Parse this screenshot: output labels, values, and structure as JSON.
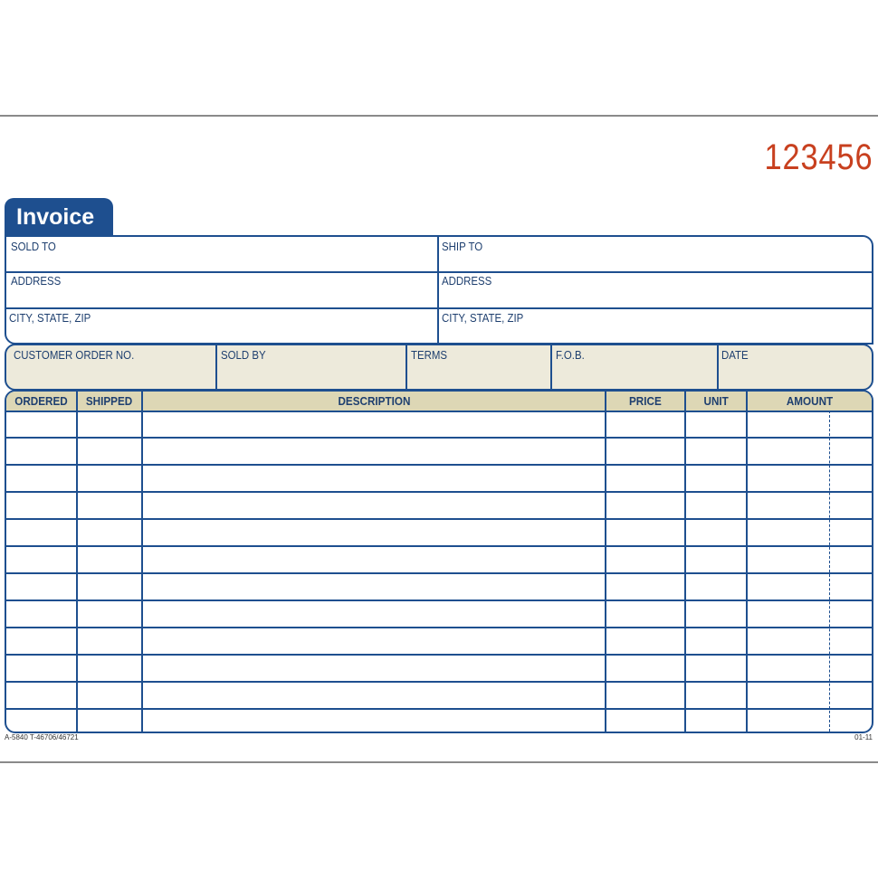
{
  "form_number": "123456",
  "title": "Invoice",
  "address_block": {
    "sold_to": "SOLD TO",
    "ship_to": "SHIP TO",
    "address_left": "ADDRESS",
    "address_right": "ADDRESS",
    "city_left": "CITY, STATE, ZIP",
    "city_right": "CITY, STATE, ZIP"
  },
  "order_block": [
    "CUSTOMER ORDER NO.",
    "SOLD BY",
    "TERMS",
    "F.O.B.",
    "DATE"
  ],
  "table": {
    "columns": [
      "ORDERED",
      "SHIPPED",
      "DESCRIPTION",
      "PRICE",
      "UNIT",
      "AMOUNT"
    ],
    "row_count": 12
  },
  "footer": {
    "left": "A-5840  T-46706/46721",
    "right": "01-11"
  },
  "colors": {
    "blue": "#1e4f8f",
    "beige": "#edeadb",
    "header_beige": "#ddd7b5",
    "number_red": "#c8401f"
  }
}
